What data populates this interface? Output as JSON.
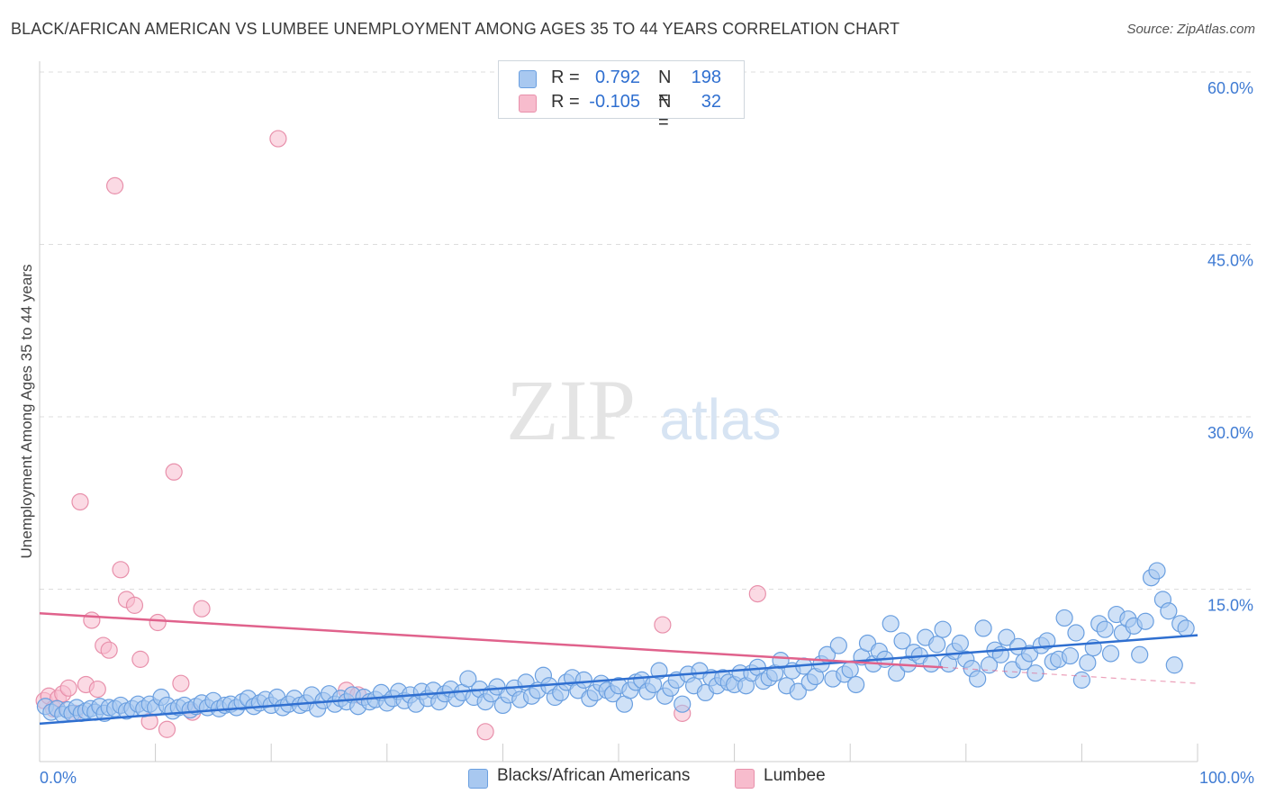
{
  "header": {
    "title": "BLACK/AFRICAN AMERICAN VS LUMBEE UNEMPLOYMENT AMONG AGES 35 TO 44 YEARS CORRELATION CHART",
    "source": "Source: ZipAtlas.com"
  },
  "watermark": {
    "zip": "ZIP",
    "atlas": "atlas"
  },
  "legend_top": {
    "rows": [
      {
        "r_label": "R =",
        "r_value": "0.792",
        "n_label": "N =",
        "n_value": "198"
      },
      {
        "r_label": "R =",
        "r_value": "-0.105",
        "n_label": "N =",
        "n_value": "32"
      }
    ]
  },
  "legend_bottom": {
    "series1": "Blacks/African Americans",
    "series2": "Lumbee"
  },
  "colors": {
    "blue_fill": "#a8c8f0",
    "blue_stroke": "#6a9fe0",
    "blue_line": "#2f6fd0",
    "pink_fill": "#f7bccd",
    "pink_stroke": "#e890ab",
    "pink_line": "#e0628c",
    "axis_text": "#3f7bd3",
    "grid": "#dddddd"
  },
  "chart_data": {
    "type": "scatter",
    "title": "BLACK/AFRICAN AMERICAN VS LUMBEE UNEMPLOYMENT AMONG AGES 35 TO 44 YEARS CORRELATION CHART",
    "xlabel": "",
    "ylabel": "Unemployment Among Ages 35 to 44 years",
    "xlim": [
      0,
      100
    ],
    "ylim": [
      0,
      60
    ],
    "x_tick_labels": [
      "0.0%",
      "100.0%"
    ],
    "y_ticks": [
      15,
      30,
      45,
      60
    ],
    "y_tick_labels": [
      "15.0%",
      "30.0%",
      "45.0%",
      "60.0%"
    ],
    "series": [
      {
        "name": "Blacks/African Americans",
        "r": 0.792,
        "n": 198,
        "trend": {
          "x": [
            0,
            100
          ],
          "y": [
            3.3,
            11.0
          ]
        },
        "points": [
          [
            0.5,
            4.8
          ],
          [
            1.0,
            4.3
          ],
          [
            1.5,
            4.6
          ],
          [
            2.0,
            4.1
          ],
          [
            2.4,
            4.5
          ],
          [
            2.8,
            4.2
          ],
          [
            3.2,
            4.7
          ],
          [
            3.6,
            4.2
          ],
          [
            4.0,
            4.4
          ],
          [
            4.4,
            4.6
          ],
          [
            4.8,
            4.3
          ],
          [
            5.2,
            4.8
          ],
          [
            5.6,
            4.2
          ],
          [
            6.0,
            4.7
          ],
          [
            6.5,
            4.6
          ],
          [
            7.0,
            4.9
          ],
          [
            7.5,
            4.4
          ],
          [
            8.0,
            4.6
          ],
          [
            8.5,
            5.0
          ],
          [
            9.0,
            4.6
          ],
          [
            9.5,
            5.0
          ],
          [
            10.0,
            4.7
          ],
          [
            10.5,
            5.6
          ],
          [
            11.0,
            4.9
          ],
          [
            11.5,
            4.4
          ],
          [
            12.0,
            4.7
          ],
          [
            12.5,
            4.9
          ],
          [
            13.0,
            4.5
          ],
          [
            13.5,
            4.8
          ],
          [
            14.0,
            5.1
          ],
          [
            14.5,
            4.7
          ],
          [
            15.0,
            5.3
          ],
          [
            15.5,
            4.6
          ],
          [
            16.0,
            4.9
          ],
          [
            16.5,
            5.0
          ],
          [
            17.0,
            4.7
          ],
          [
            17.5,
            5.2
          ],
          [
            18.0,
            5.5
          ],
          [
            18.5,
            4.8
          ],
          [
            19.0,
            5.1
          ],
          [
            19.5,
            5.4
          ],
          [
            20.0,
            4.9
          ],
          [
            20.5,
            5.6
          ],
          [
            21.0,
            4.7
          ],
          [
            21.5,
            5.0
          ],
          [
            22.0,
            5.5
          ],
          [
            22.5,
            4.9
          ],
          [
            23.0,
            5.1
          ],
          [
            23.5,
            5.8
          ],
          [
            24.0,
            4.6
          ],
          [
            24.5,
            5.3
          ],
          [
            25.0,
            5.9
          ],
          [
            25.5,
            5.0
          ],
          [
            26.0,
            5.5
          ],
          [
            26.5,
            5.2
          ],
          [
            27.0,
            5.8
          ],
          [
            27.5,
            4.8
          ],
          [
            28.0,
            5.6
          ],
          [
            28.5,
            5.2
          ],
          [
            29.0,
            5.4
          ],
          [
            29.5,
            6.0
          ],
          [
            30.0,
            5.1
          ],
          [
            30.5,
            5.5
          ],
          [
            31.0,
            6.1
          ],
          [
            31.5,
            5.3
          ],
          [
            32.0,
            5.8
          ],
          [
            32.5,
            5.0
          ],
          [
            33.0,
            6.1
          ],
          [
            33.5,
            5.5
          ],
          [
            34.0,
            6.2
          ],
          [
            34.5,
            5.2
          ],
          [
            35.0,
            5.9
          ],
          [
            35.5,
            6.3
          ],
          [
            36.0,
            5.5
          ],
          [
            36.5,
            6.0
          ],
          [
            37.0,
            7.2
          ],
          [
            37.5,
            5.6
          ],
          [
            38.0,
            6.3
          ],
          [
            38.5,
            5.2
          ],
          [
            39.0,
            5.9
          ],
          [
            39.5,
            6.5
          ],
          [
            40.0,
            4.9
          ],
          [
            40.5,
            5.8
          ],
          [
            41.0,
            6.4
          ],
          [
            41.5,
            5.4
          ],
          [
            42.0,
            6.9
          ],
          [
            42.5,
            5.7
          ],
          [
            43.0,
            6.2
          ],
          [
            43.5,
            7.5
          ],
          [
            44.0,
            6.6
          ],
          [
            44.5,
            5.6
          ],
          [
            45.0,
            6.0
          ],
          [
            45.5,
            6.9
          ],
          [
            46.0,
            7.3
          ],
          [
            46.5,
            6.2
          ],
          [
            47.0,
            7.1
          ],
          [
            47.5,
            5.5
          ],
          [
            48.0,
            6.0
          ],
          [
            48.5,
            6.8
          ],
          [
            49.0,
            6.2
          ],
          [
            49.5,
            5.9
          ],
          [
            50.0,
            6.6
          ],
          [
            50.5,
            5.0
          ],
          [
            51.0,
            6.2
          ],
          [
            51.5,
            6.9
          ],
          [
            52.0,
            7.1
          ],
          [
            52.5,
            6.1
          ],
          [
            53.0,
            6.7
          ],
          [
            53.5,
            7.9
          ],
          [
            54.0,
            5.7
          ],
          [
            54.5,
            6.4
          ],
          [
            55.0,
            7.1
          ],
          [
            55.5,
            5.0
          ],
          [
            56.0,
            7.6
          ],
          [
            56.5,
            6.6
          ],
          [
            57.0,
            7.9
          ],
          [
            57.5,
            6.0
          ],
          [
            58.0,
            7.3
          ],
          [
            58.5,
            6.6
          ],
          [
            59.0,
            7.3
          ],
          [
            59.5,
            6.9
          ],
          [
            60.0,
            6.7
          ],
          [
            60.5,
            7.7
          ],
          [
            61.0,
            6.6
          ],
          [
            61.5,
            7.7
          ],
          [
            62.0,
            8.2
          ],
          [
            62.5,
            7.0
          ],
          [
            63.0,
            7.3
          ],
          [
            63.5,
            7.7
          ],
          [
            64.0,
            8.8
          ],
          [
            64.5,
            6.6
          ],
          [
            65.0,
            7.9
          ],
          [
            65.5,
            6.1
          ],
          [
            66.0,
            8.3
          ],
          [
            66.5,
            6.9
          ],
          [
            67.0,
            7.4
          ],
          [
            67.5,
            8.5
          ],
          [
            68.0,
            9.3
          ],
          [
            68.5,
            7.2
          ],
          [
            69.0,
            10.1
          ],
          [
            69.5,
            7.6
          ],
          [
            70.0,
            8.0
          ],
          [
            70.5,
            6.7
          ],
          [
            71.0,
            9.1
          ],
          [
            71.5,
            10.3
          ],
          [
            72.0,
            8.5
          ],
          [
            72.5,
            9.6
          ],
          [
            73.0,
            8.9
          ],
          [
            73.5,
            12.0
          ],
          [
            74.0,
            7.7
          ],
          [
            74.5,
            10.5
          ],
          [
            75.0,
            8.5
          ],
          [
            75.5,
            9.5
          ],
          [
            76.0,
            9.2
          ],
          [
            76.5,
            10.8
          ],
          [
            77.0,
            8.5
          ],
          [
            77.5,
            10.2
          ],
          [
            78.0,
            11.5
          ],
          [
            78.5,
            8.5
          ],
          [
            79.0,
            9.6
          ],
          [
            79.5,
            10.3
          ],
          [
            80.0,
            8.9
          ],
          [
            80.5,
            8.1
          ],
          [
            81.0,
            7.2
          ],
          [
            81.5,
            11.6
          ],
          [
            82.0,
            8.4
          ],
          [
            82.5,
            9.7
          ],
          [
            83.0,
            9.3
          ],
          [
            83.5,
            10.8
          ],
          [
            84.0,
            8.0
          ],
          [
            84.5,
            10.0
          ],
          [
            85.0,
            8.7
          ],
          [
            85.5,
            9.4
          ],
          [
            86.0,
            7.7
          ],
          [
            86.5,
            10.1
          ],
          [
            87.0,
            10.5
          ],
          [
            87.5,
            8.7
          ],
          [
            88.0,
            8.9
          ],
          [
            88.5,
            12.5
          ],
          [
            89.0,
            9.2
          ],
          [
            89.5,
            11.2
          ],
          [
            90.0,
            7.1
          ],
          [
            90.5,
            8.6
          ],
          [
            91.0,
            9.9
          ],
          [
            91.5,
            12.0
          ],
          [
            92.0,
            11.5
          ],
          [
            92.5,
            9.4
          ],
          [
            93.0,
            12.8
          ],
          [
            93.5,
            11.2
          ],
          [
            94.0,
            12.4
          ],
          [
            94.5,
            11.8
          ],
          [
            95.0,
            9.3
          ],
          [
            95.5,
            12.2
          ],
          [
            96.0,
            16.0
          ],
          [
            96.5,
            16.6
          ],
          [
            97.0,
            14.1
          ],
          [
            97.5,
            13.1
          ],
          [
            98.0,
            8.4
          ],
          [
            98.5,
            12.0
          ],
          [
            99.0,
            11.6
          ]
        ]
      },
      {
        "name": "Lumbee",
        "r": -0.105,
        "n": 32,
        "trend": {
          "x": [
            0,
            78
          ],
          "y": [
            12.9,
            8.2
          ]
        },
        "trend_dashed": {
          "x": [
            78,
            100
          ],
          "y": [
            8.2,
            6.8
          ]
        },
        "points": [
          [
            0.4,
            5.3
          ],
          [
            0.8,
            5.7
          ],
          [
            1.2,
            4.6
          ],
          [
            1.6,
            5.5
          ],
          [
            2.0,
            5.9
          ],
          [
            2.5,
            6.4
          ],
          [
            3.0,
            4.2
          ],
          [
            3.5,
            22.6
          ],
          [
            4.0,
            6.7
          ],
          [
            4.5,
            12.3
          ],
          [
            5.0,
            6.3
          ],
          [
            5.5,
            10.1
          ],
          [
            6.0,
            9.7
          ],
          [
            6.5,
            50.1
          ],
          [
            7.0,
            16.7
          ],
          [
            7.5,
            14.1
          ],
          [
            8.2,
            13.6
          ],
          [
            8.7,
            8.9
          ],
          [
            9.5,
            3.5
          ],
          [
            10.2,
            12.1
          ],
          [
            11.0,
            2.8
          ],
          [
            11.6,
            25.2
          ],
          [
            12.2,
            6.8
          ],
          [
            13.2,
            4.3
          ],
          [
            14.0,
            13.3
          ],
          [
            20.6,
            54.2
          ],
          [
            26.5,
            6.2
          ],
          [
            27.5,
            5.8
          ],
          [
            38.5,
            2.6
          ],
          [
            53.8,
            11.9
          ],
          [
            55.5,
            4.2
          ],
          [
            62.0,
            14.6
          ]
        ]
      }
    ]
  }
}
